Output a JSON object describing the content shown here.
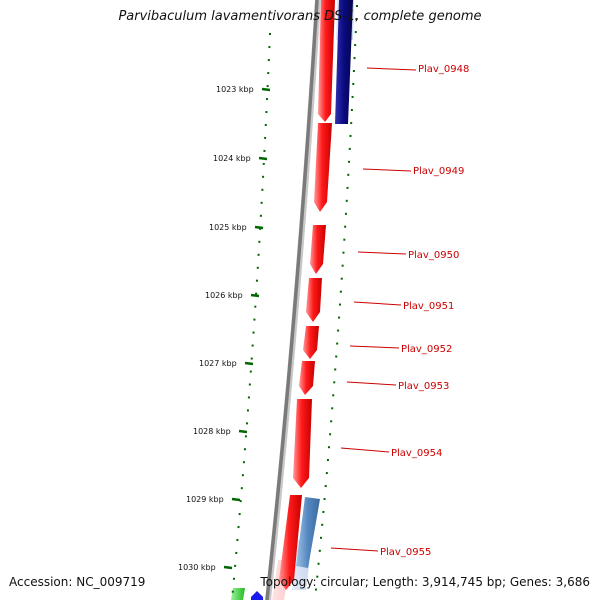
{
  "header": {
    "title": "Parvibaculum lavamentivorans DS-1, complete genome"
  },
  "footer": {
    "accession": "Accession: NC_009719",
    "summary": "Topology: circular; Length: 3,914,745 bp; Genes: 3,686"
  },
  "colors": {
    "forward_gene": "#ff1a1a",
    "reverse_gene_dark": "#0a0a80",
    "reverse_gene_light": "#5588c0",
    "other_gene_green": "#22cc22",
    "other_gene_blue": "#1a1aee",
    "backbone": "#808080",
    "tick": "#006600",
    "label": "#cc0000"
  },
  "coordinate_ticks": [
    {
      "label": "1023 kbp"
    },
    {
      "label": "1024 kbp"
    },
    {
      "label": "1025 kbp"
    },
    {
      "label": "1026 kbp"
    },
    {
      "label": "1027 kbp"
    },
    {
      "label": "1028 kbp"
    },
    {
      "label": "1029 kbp"
    },
    {
      "label": "1030 kbp"
    }
  ],
  "gene_labels": [
    {
      "name": "Plav_0948"
    },
    {
      "name": "Plav_0949"
    },
    {
      "name": "Plav_0950"
    },
    {
      "name": "Plav_0951"
    },
    {
      "name": "Plav_0952"
    },
    {
      "name": "Plav_0953"
    },
    {
      "name": "Plav_0954"
    },
    {
      "name": "Plav_0955"
    }
  ]
}
